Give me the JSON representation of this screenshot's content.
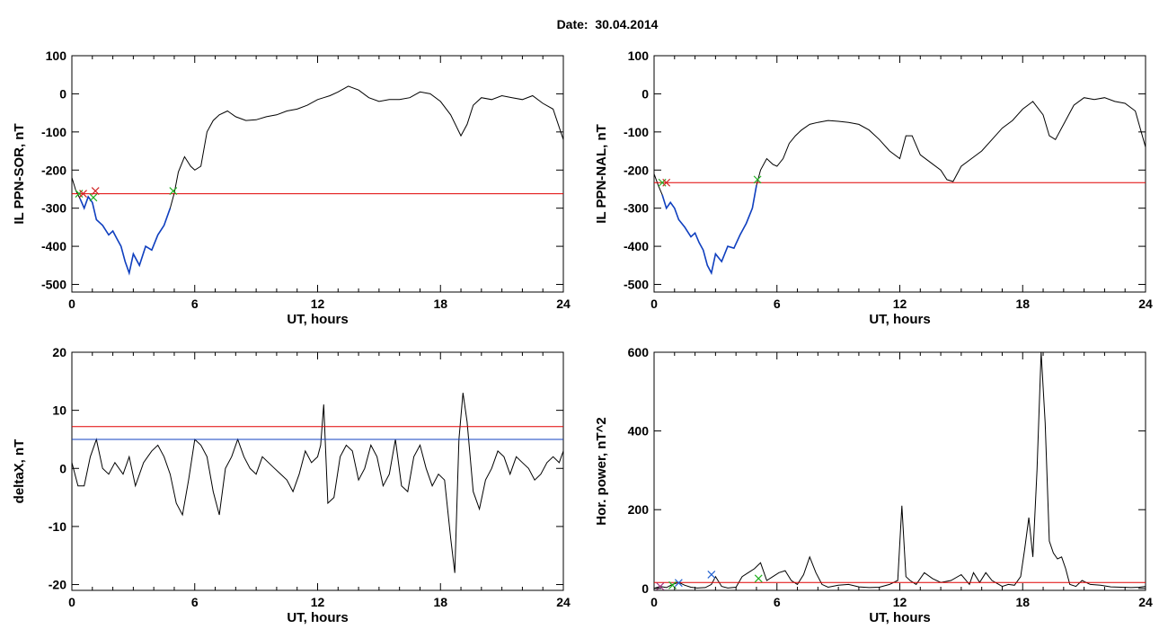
{
  "title": {
    "label": "Date:",
    "value": "30.04.2014"
  },
  "colors": {
    "background": "#ffffff",
    "axes": "#000000",
    "data_line": "#000000",
    "threshold_red": "#e00000",
    "highlight_blue": "#1040c0",
    "marker_green": "#20b020",
    "marker_red": "#d02020",
    "marker_blue": "#2060d0",
    "marker_purple": "#a03080"
  },
  "chart_data": [
    {
      "type": "line",
      "id": "il-sor",
      "xlabel": "UT, hours",
      "ylabel": "IL PPN-SOR, nT",
      "xlim": [
        0,
        24
      ],
      "ylim": [
        -520,
        100
      ],
      "xticks": [
        0,
        6,
        12,
        18,
        24
      ],
      "yticks": [
        100,
        0,
        -100,
        -200,
        -300,
        -400,
        -500
      ],
      "grid": false,
      "series": [
        {
          "color": "#000000",
          "x": [
            0,
            0.2,
            0.4,
            0.6,
            0.8,
            1.0,
            1.2,
            1.5,
            1.8,
            2.0,
            2.2,
            2.4,
            2.6,
            2.8,
            3.0,
            3.3,
            3.6,
            3.9,
            4.2,
            4.5,
            4.8,
            5.0,
            5.2,
            5.5,
            5.8,
            6.0,
            6.3,
            6.6,
            6.9,
            7.2,
            7.6,
            8.0,
            8.5,
            9.0,
            9.5,
            10.0,
            10.5,
            11.0,
            11.5,
            12.0,
            12.3,
            12.6,
            13.0,
            13.5,
            14.0,
            14.5,
            15.0,
            15.5,
            16.0,
            16.5,
            17.0,
            17.5,
            18.0,
            18.5,
            19.0,
            19.3,
            19.6,
            20.0,
            20.5,
            21.0,
            21.5,
            22.0,
            22.5,
            23.0,
            23.5,
            24.0
          ],
          "y": [
            -220,
            -255,
            -275,
            -300,
            -270,
            -285,
            -330,
            -345,
            -370,
            -360,
            -380,
            -400,
            -440,
            -470,
            -420,
            -450,
            -400,
            -410,
            -370,
            -345,
            -300,
            -260,
            -205,
            -165,
            -190,
            -200,
            -190,
            -100,
            -70,
            -55,
            -45,
            -60,
            -70,
            -68,
            -60,
            -55,
            -45,
            -40,
            -30,
            -15,
            -10,
            -5,
            5,
            20,
            10,
            -10,
            -20,
            -15,
            -15,
            -10,
            5,
            0,
            -20,
            -55,
            -110,
            -80,
            -30,
            -10,
            -15,
            -5,
            -10,
            -15,
            -5,
            -25,
            -40,
            -120
          ]
        },
        {
          "color": "#e00000",
          "x": [
            0,
            24
          ],
          "y": [
            -262,
            -262
          ]
        }
      ],
      "markers": [
        {
          "x": 0.35,
          "y": -262,
          "color": "#20b020"
        },
        {
          "x": 0.55,
          "y": -262,
          "color": "#d02020"
        },
        {
          "x": 1.05,
          "y": -272,
          "color": "#20b020"
        },
        {
          "x": 1.15,
          "y": -255,
          "color": "#d02020"
        },
        {
          "x": 4.95,
          "y": -255,
          "color": "#20b020"
        }
      ],
      "highlight": {
        "color": "#1040c0",
        "x_range": [
          0.3,
          4.9
        ]
      }
    },
    {
      "type": "line",
      "id": "il-nal",
      "xlabel": "UT, hours",
      "ylabel": "IL PPN-NAL, nT",
      "xlim": [
        0,
        24
      ],
      "ylim": [
        -520,
        100
      ],
      "xticks": [
        0,
        6,
        12,
        18,
        24
      ],
      "yticks": [
        100,
        0,
        -100,
        -200,
        -300,
        -400,
        -500
      ],
      "grid": false,
      "series": [
        {
          "color": "#000000",
          "x": [
            0,
            0.2,
            0.4,
            0.6,
            0.8,
            1.0,
            1.2,
            1.5,
            1.8,
            2.0,
            2.2,
            2.4,
            2.6,
            2.8,
            3.0,
            3.3,
            3.6,
            3.9,
            4.2,
            4.5,
            4.8,
            5.0,
            5.2,
            5.5,
            5.8,
            6.0,
            6.3,
            6.6,
            6.9,
            7.2,
            7.6,
            8.0,
            8.5,
            9.0,
            9.5,
            10.0,
            10.5,
            11.0,
            11.5,
            12.0,
            12.3,
            12.6,
            13.0,
            13.5,
            14.0,
            14.3,
            14.6,
            15.0,
            15.5,
            16.0,
            16.5,
            17.0,
            17.5,
            18.0,
            18.5,
            19.0,
            19.3,
            19.6,
            20.0,
            20.5,
            21.0,
            21.5,
            22.0,
            22.5,
            23.0,
            23.5,
            24.0
          ],
          "y": [
            -210,
            -240,
            -265,
            -300,
            -285,
            -300,
            -330,
            -350,
            -375,
            -365,
            -390,
            -410,
            -450,
            -470,
            -420,
            -440,
            -400,
            -405,
            -370,
            -340,
            -300,
            -240,
            -200,
            -170,
            -185,
            -190,
            -170,
            -130,
            -110,
            -95,
            -80,
            -75,
            -70,
            -72,
            -75,
            -80,
            -95,
            -120,
            -150,
            -170,
            -110,
            -110,
            -160,
            -180,
            -200,
            -225,
            -230,
            -190,
            -170,
            -150,
            -120,
            -90,
            -70,
            -40,
            -20,
            -55,
            -110,
            -120,
            -80,
            -30,
            -10,
            -15,
            -10,
            -20,
            -25,
            -45,
            -140
          ]
        },
        {
          "color": "#e00000",
          "x": [
            0,
            24
          ],
          "y": [
            -233,
            -233
          ]
        }
      ],
      "markers": [
        {
          "x": 0.4,
          "y": -233,
          "color": "#20b020"
        },
        {
          "x": 0.6,
          "y": -233,
          "color": "#d02020"
        },
        {
          "x": 5.05,
          "y": -225,
          "color": "#20b020"
        }
      ],
      "highlight": {
        "color": "#1040c0",
        "x_range": [
          0.3,
          5.0
        ]
      }
    },
    {
      "type": "line",
      "id": "deltax",
      "xlabel": "UT, hours",
      "ylabel": "deltaX, nT",
      "xlim": [
        0,
        24
      ],
      "ylim": [
        -21,
        20
      ],
      "xticks": [
        0,
        6,
        12,
        18,
        24
      ],
      "yticks": [
        20,
        10,
        0,
        -10,
        -20
      ],
      "grid": false,
      "series": [
        {
          "color": "#000000",
          "x": [
            0,
            0.3,
            0.6,
            0.9,
            1.2,
            1.5,
            1.8,
            2.1,
            2.5,
            2.8,
            3.1,
            3.5,
            3.9,
            4.2,
            4.5,
            4.8,
            5.1,
            5.4,
            5.7,
            6.0,
            6.3,
            6.6,
            6.9,
            7.2,
            7.5,
            7.8,
            8.1,
            8.4,
            8.7,
            9.0,
            9.3,
            9.6,
            9.9,
            10.2,
            10.5,
            10.8,
            11.1,
            11.4,
            11.7,
            12.0,
            12.15,
            12.3,
            12.5,
            12.8,
            13.1,
            13.4,
            13.7,
            14.0,
            14.3,
            14.6,
            14.9,
            15.2,
            15.5,
            15.8,
            16.1,
            16.4,
            16.7,
            17.0,
            17.3,
            17.6,
            17.9,
            18.2,
            18.5,
            18.7,
            18.9,
            19.1,
            19.3,
            19.6,
            19.9,
            20.2,
            20.5,
            20.8,
            21.1,
            21.4,
            21.7,
            22.0,
            22.3,
            22.6,
            22.9,
            23.2,
            23.5,
            23.8,
            24.0
          ],
          "y": [
            1,
            -3,
            -3,
            2,
            5,
            0,
            -1,
            1,
            -1,
            2,
            -3,
            1,
            3,
            4,
            2,
            -1,
            -6,
            -8,
            -2,
            5,
            4,
            2,
            -4,
            -8,
            0,
            2,
            5,
            2,
            0,
            -1,
            2,
            1,
            0,
            -1,
            -2,
            -4,
            -1,
            3,
            1,
            2,
            4,
            11,
            -6,
            -5,
            2,
            4,
            3,
            -2,
            0,
            4,
            2,
            -3,
            -1,
            5,
            -3,
            -4,
            2,
            4,
            0,
            -3,
            -1,
            -2,
            -12,
            -18,
            5,
            13,
            8,
            -4,
            -7,
            -2,
            0,
            3,
            2,
            -1,
            2,
            1,
            0,
            -2,
            -1,
            1,
            2,
            1,
            3
          ]
        },
        {
          "color": "#e00000",
          "x": [
            0,
            24
          ],
          "y": [
            7.2,
            7.2
          ]
        },
        {
          "color": "#1040c0",
          "x": [
            0,
            24
          ],
          "y": [
            5,
            5
          ]
        }
      ],
      "markers": []
    },
    {
      "type": "line",
      "id": "hor-power",
      "xlabel": "UT, hours",
      "ylabel": "Hor. power, nT^2",
      "xlim": [
        0,
        24
      ],
      "ylim": [
        -5,
        600
      ],
      "xticks": [
        0,
        6,
        12,
        18,
        24
      ],
      "yticks": [
        600,
        400,
        200,
        0
      ],
      "grid": false,
      "series": [
        {
          "color": "#000000",
          "x": [
            0,
            0.3,
            0.6,
            0.9,
            1.2,
            1.5,
            1.8,
            2.1,
            2.5,
            2.8,
            3.0,
            3.3,
            3.6,
            4.0,
            4.3,
            4.6,
            4.9,
            5.2,
            5.5,
            5.8,
            6.1,
            6.4,
            6.7,
            7.0,
            7.3,
            7.6,
            7.9,
            8.2,
            8.5,
            9.0,
            9.5,
            10.0,
            10.5,
            11.0,
            11.5,
            11.9,
            12.1,
            12.3,
            12.5,
            12.8,
            13.2,
            13.6,
            14.0,
            14.5,
            15.0,
            15.4,
            15.6,
            15.9,
            16.2,
            16.5,
            17.0,
            17.3,
            17.6,
            17.9,
            18.1,
            18.3,
            18.5,
            18.7,
            18.9,
            19.1,
            19.3,
            19.5,
            19.7,
            19.9,
            20.1,
            20.3,
            20.6,
            20.9,
            21.3,
            21.8,
            22.3,
            22.8,
            23.3,
            23.7,
            24.0
          ],
          "y": [
            0,
            5,
            2,
            10,
            15,
            8,
            3,
            1,
            2,
            10,
            30,
            5,
            1,
            3,
            30,
            40,
            50,
            65,
            20,
            30,
            40,
            45,
            20,
            10,
            35,
            80,
            40,
            10,
            3,
            8,
            10,
            4,
            2,
            3,
            10,
            20,
            210,
            30,
            20,
            10,
            40,
            25,
            15,
            20,
            35,
            10,
            40,
            15,
            40,
            20,
            5,
            10,
            8,
            30,
            100,
            180,
            80,
            300,
            600,
            420,
            120,
            90,
            75,
            80,
            50,
            10,
            5,
            20,
            10,
            8,
            4,
            3,
            2,
            3,
            5
          ]
        },
        {
          "color": "#e00000",
          "x": [
            0,
            24
          ],
          "y": [
            15,
            15
          ]
        }
      ],
      "markers": [
        {
          "x": 0.3,
          "y": 5,
          "color": "#a03080"
        },
        {
          "x": 0.9,
          "y": 8,
          "color": "#20b020"
        },
        {
          "x": 1.2,
          "y": 14,
          "color": "#2060d0"
        },
        {
          "x": 2.8,
          "y": 35,
          "color": "#2060d0"
        },
        {
          "x": 5.1,
          "y": 25,
          "color": "#20b020"
        }
      ]
    }
  ]
}
